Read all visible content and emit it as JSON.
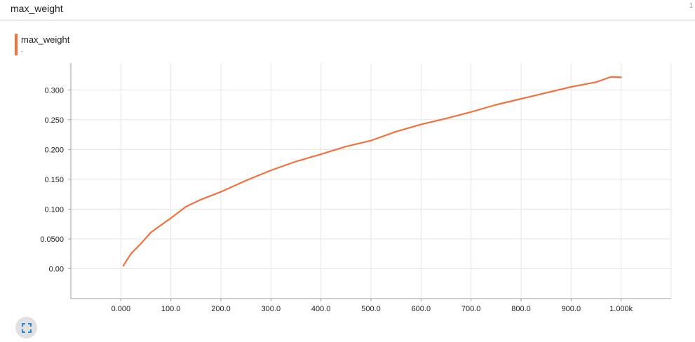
{
  "card": {
    "title": "max_weight",
    "count": "1"
  },
  "legend": {
    "name": "max_weight",
    "value": "."
  },
  "colors": {
    "series": "#f2723e",
    "grid": "#e5e5e5",
    "axis": "#9e9e9e",
    "expand": "#1e88e5"
  },
  "icons": {
    "expand": "fullscreen-icon"
  },
  "chart_data": {
    "type": "line",
    "title": "max_weight",
    "xlabel": "",
    "ylabel": "",
    "xlim": [
      -100,
      1100
    ],
    "ylim": [
      -0.05,
      0.345
    ],
    "x_ticks": [
      0,
      100,
      200,
      300,
      400,
      500,
      600,
      700,
      800,
      900,
      1000
    ],
    "x_tick_labels": [
      "0.000",
      "100.0",
      "200.0",
      "300.0",
      "400.0",
      "500.0",
      "600.0",
      "700.0",
      "800.0",
      "900.0",
      "1.000k"
    ],
    "y_ticks": [
      0,
      0.05,
      0.1,
      0.15,
      0.2,
      0.25,
      0.3
    ],
    "y_tick_labels": [
      "0.00",
      "0.0500",
      "0.100",
      "0.150",
      "0.200",
      "0.250",
      "0.300"
    ],
    "series": [
      {
        "name": "max_weight",
        "x": [
          5,
          20,
          40,
          60,
          80,
          100,
          130,
          160,
          200,
          250,
          300,
          350,
          400,
          450,
          500,
          550,
          600,
          650,
          700,
          750,
          800,
          850,
          900,
          950,
          980,
          1000
        ],
        "y": [
          0.005,
          0.025,
          0.042,
          0.061,
          0.073,
          0.085,
          0.104,
          0.116,
          0.129,
          0.148,
          0.165,
          0.18,
          0.192,
          0.205,
          0.215,
          0.23,
          0.242,
          0.252,
          0.263,
          0.275,
          0.285,
          0.295,
          0.305,
          0.313,
          0.322,
          0.321
        ]
      }
    ]
  }
}
